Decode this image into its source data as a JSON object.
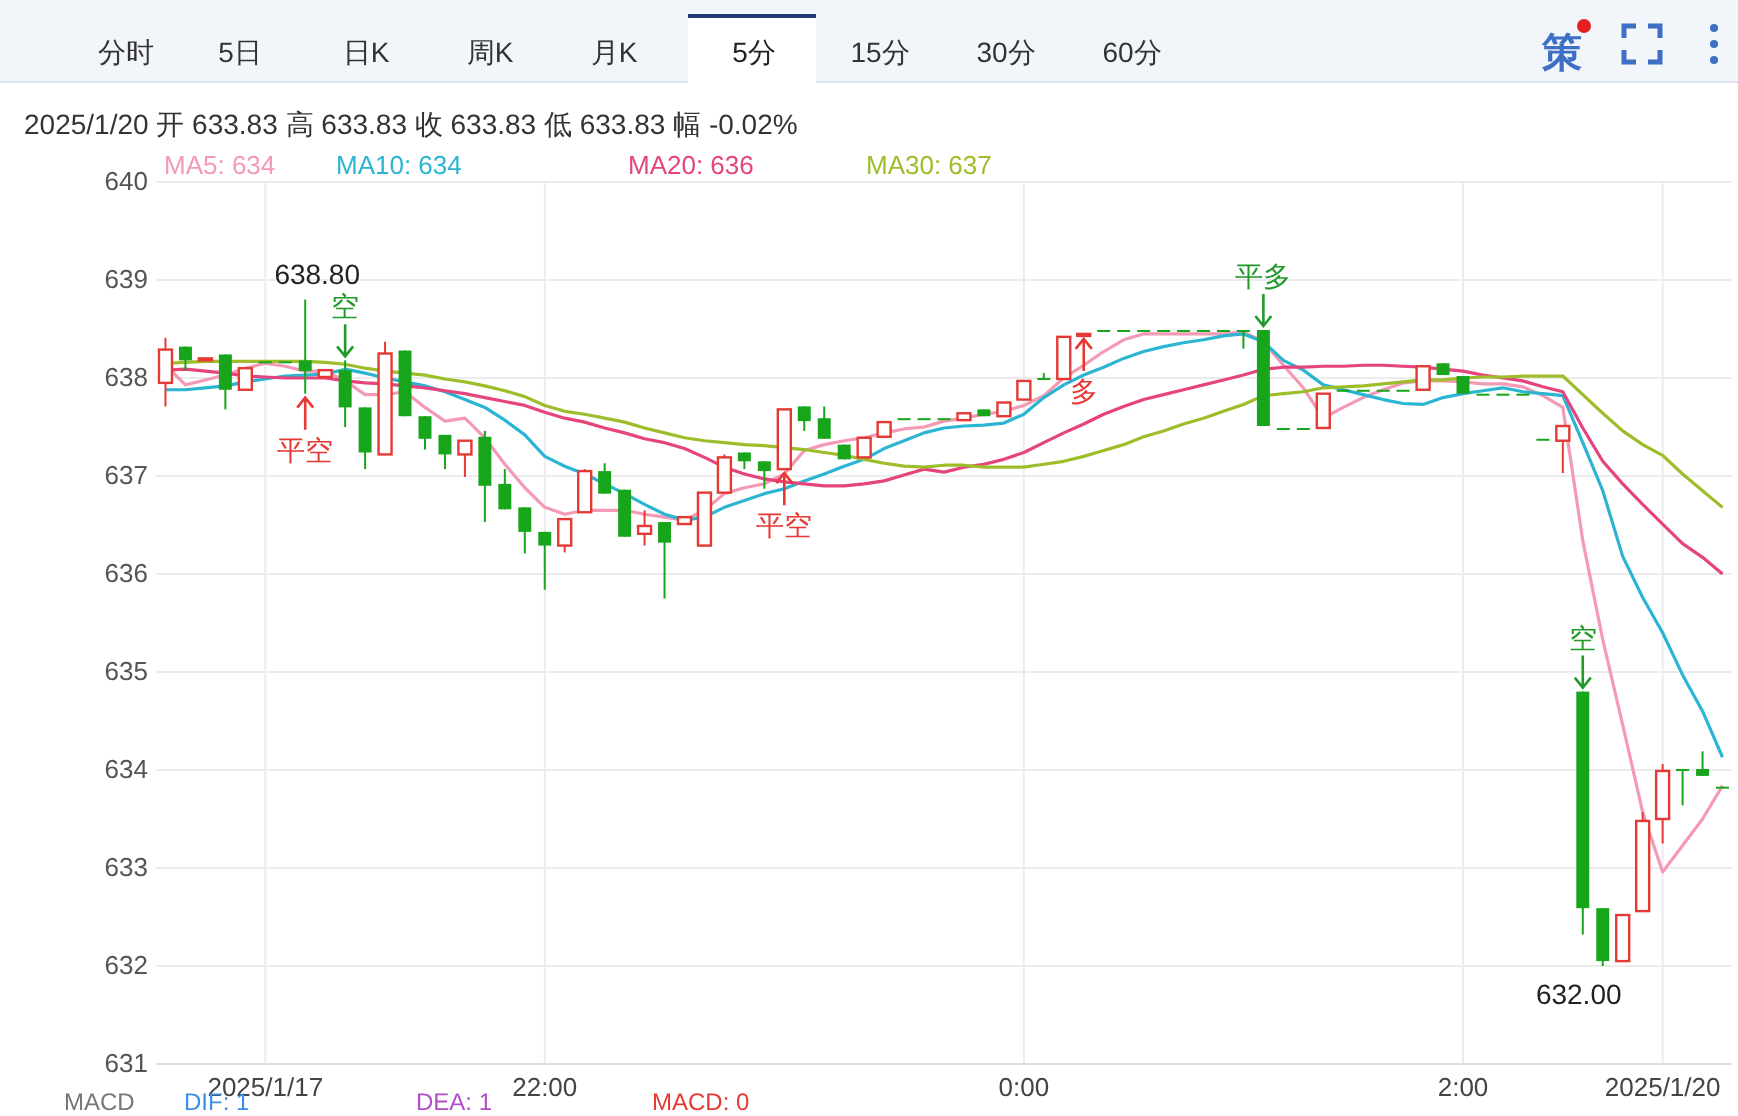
{
  "chart_data": {
    "type": "candlestick",
    "subtitle": "2025/1/20  开 633.83  高 633.83  收 633.83  低 633.83  幅 -0.02%",
    "categories": [
      null,
      null,
      null,
      null,
      null,
      "2025/1/17",
      null,
      null,
      null,
      null,
      null,
      null,
      null,
      null,
      null,
      null,
      null,
      null,
      null,
      "22:00",
      null,
      null,
      null,
      null,
      null,
      null,
      null,
      null,
      null,
      null,
      null,
      null,
      null,
      null,
      null,
      null,
      null,
      null,
      null,
      null,
      null,
      null,
      null,
      "0:00",
      null,
      null,
      null,
      null,
      null,
      null,
      null,
      null,
      null,
      null,
      null,
      null,
      null,
      null,
      null,
      null,
      null,
      null,
      null,
      null,
      null,
      "2:00",
      null,
      null,
      null,
      null,
      null,
      null,
      null,
      null,
      null,
      "2025/1/20",
      null,
      null,
      null
    ],
    "ohlc": [
      [
        637.95,
        638.41,
        637.71,
        638.29
      ],
      [
        638.32,
        638.32,
        638.08,
        638.18
      ],
      [
        638.18,
        638.2,
        638.18,
        638.2
      ],
      [
        638.24,
        638.24,
        637.68,
        637.88
      ],
      [
        637.88,
        638.1,
        637.88,
        638.1
      ],
      [
        638.17,
        638.17,
        638.17,
        638.17
      ],
      [
        638.17,
        638.17,
        638.17,
        638.17
      ],
      [
        638.18,
        638.8,
        637.84,
        638.07
      ],
      [
        638.01,
        638.08,
        638.01,
        638.08
      ],
      [
        638.08,
        638.18,
        637.5,
        637.7
      ],
      [
        637.7,
        637.7,
        637.07,
        637.24
      ],
      [
        637.22,
        638.37,
        637.22,
        638.25
      ],
      [
        638.28,
        638.28,
        637.61,
        637.61
      ],
      [
        637.61,
        637.61,
        637.27,
        637.38
      ],
      [
        637.42,
        637.42,
        637.07,
        637.22
      ],
      [
        637.22,
        637.36,
        636.99,
        637.36
      ],
      [
        637.4,
        637.46,
        636.53,
        636.9
      ],
      [
        636.92,
        637.07,
        636.66,
        636.66
      ],
      [
        636.68,
        636.68,
        636.21,
        636.43
      ],
      [
        636.43,
        636.43,
        635.84,
        636.29
      ],
      [
        636.29,
        636.56,
        636.22,
        636.56
      ],
      [
        636.63,
        637.07,
        636.63,
        637.05
      ],
      [
        637.05,
        637.13,
        636.82,
        636.82
      ],
      [
        636.86,
        636.86,
        636.38,
        636.38
      ],
      [
        636.41,
        636.65,
        636.29,
        636.49
      ],
      [
        636.53,
        636.53,
        635.75,
        636.32
      ],
      [
        636.51,
        636.58,
        636.51,
        636.58
      ],
      [
        636.29,
        636.83,
        636.29,
        636.83
      ],
      [
        636.83,
        637.22,
        636.83,
        637.19
      ],
      [
        637.24,
        637.24,
        637.07,
        637.15
      ],
      [
        637.15,
        637.15,
        636.87,
        637.05
      ],
      [
        637.07,
        637.68,
        637.07,
        637.68
      ],
      [
        637.71,
        637.71,
        637.46,
        637.56
      ],
      [
        637.59,
        637.71,
        637.38,
        637.38
      ],
      [
        637.32,
        637.32,
        637.17,
        637.17
      ],
      [
        637.19,
        637.39,
        637.19,
        637.39
      ],
      [
        637.4,
        637.55,
        637.4,
        637.55
      ],
      [
        637.59,
        637.59,
        637.59,
        637.59
      ],
      [
        637.59,
        637.59,
        637.59,
        637.59
      ],
      [
        637.59,
        637.59,
        637.59,
        637.59
      ],
      [
        637.57,
        637.64,
        637.57,
        637.64
      ],
      [
        637.68,
        637.68,
        637.61,
        637.61
      ],
      [
        637.61,
        637.75,
        637.61,
        637.75
      ],
      [
        637.78,
        637.97,
        637.78,
        637.97
      ],
      [
        638.0,
        638.05,
        637.99,
        637.99
      ],
      [
        637.99,
        638.42,
        637.99,
        638.42
      ],
      [
        638.44,
        638.45,
        638.44,
        638.45
      ],
      [
        638.49,
        638.49,
        638.49,
        638.49
      ],
      [
        638.49,
        638.49,
        638.49,
        638.49
      ],
      [
        638.49,
        638.49,
        638.49,
        638.49
      ],
      [
        638.49,
        638.49,
        638.49,
        638.49
      ],
      [
        638.49,
        638.49,
        638.49,
        638.49
      ],
      [
        638.49,
        638.49,
        638.49,
        638.49
      ],
      [
        638.49,
        638.49,
        638.49,
        638.49
      ],
      [
        638.49,
        638.49,
        638.3,
        638.47
      ],
      [
        638.49,
        638.49,
        637.51,
        637.51
      ],
      [
        637.49,
        637.49,
        637.49,
        637.49
      ],
      [
        637.49,
        637.49,
        637.49,
        637.49
      ],
      [
        637.49,
        637.84,
        637.49,
        637.84
      ],
      [
        637.88,
        637.88,
        637.88,
        637.88
      ],
      [
        637.88,
        637.88,
        637.88,
        637.88
      ],
      [
        637.88,
        637.88,
        637.88,
        637.88
      ],
      [
        637.88,
        637.88,
        637.88,
        637.88
      ],
      [
        637.88,
        638.12,
        637.88,
        638.12
      ],
      [
        638.15,
        638.15,
        638.03,
        638.03
      ],
      [
        638.02,
        638.02,
        637.84,
        637.84
      ],
      [
        637.84,
        637.84,
        637.84,
        637.84
      ],
      [
        637.84,
        637.84,
        637.84,
        637.84
      ],
      [
        637.84,
        637.84,
        637.84,
        637.84
      ],
      [
        637.38,
        637.38,
        637.38,
        637.38
      ],
      [
        637.36,
        637.51,
        637.03,
        637.51
      ],
      [
        634.8,
        634.8,
        632.32,
        632.59
      ],
      [
        632.59,
        632.59,
        632.0,
        632.05
      ],
      [
        632.05,
        632.52,
        632.05,
        632.52
      ],
      [
        632.56,
        633.57,
        632.56,
        633.48
      ],
      [
        633.5,
        634.06,
        633.25,
        633.99
      ],
      [
        634.01,
        634.01,
        633.64,
        634.0
      ],
      [
        634.01,
        634.19,
        633.94,
        633.94
      ],
      [
        633.83,
        633.83,
        633.83,
        633.83
      ]
    ],
    "series": [
      {
        "name": "MA5: 634",
        "type": "line",
        "color": "#f49ab5",
        "values": [
          638.13,
          637.93,
          637.98,
          638.03,
          638.1,
          638.15,
          638.12,
          638.07,
          638.07,
          637.97,
          637.83,
          637.83,
          637.86,
          637.7,
          637.56,
          637.59,
          637.39,
          637.12,
          636.88,
          636.68,
          636.61,
          636.65,
          636.65,
          636.65,
          636.61,
          636.58,
          636.55,
          636.65,
          636.82,
          636.88,
          636.92,
          637.02,
          637.26,
          637.32,
          637.36,
          637.39,
          637.44,
          637.48,
          637.5,
          637.56,
          637.59,
          637.63,
          637.66,
          637.72,
          637.82,
          638.0,
          638.13,
          638.27,
          638.39,
          638.45,
          638.45,
          638.45,
          638.45,
          638.45,
          638.47,
          638.37,
          638.13,
          637.9,
          637.59,
          637.7,
          637.8,
          637.88,
          637.95,
          637.97,
          637.97,
          637.96,
          637.94,
          637.94,
          637.91,
          637.82,
          637.7,
          636.34,
          635.33,
          634.46,
          633.57,
          632.96,
          633.23,
          633.5,
          633.84
        ]
      },
      {
        "name": "MA10: 634",
        "type": "line",
        "color": "#2bb5d3",
        "values": [
          637.88,
          637.88,
          637.9,
          637.92,
          637.96,
          637.99,
          638.02,
          638.03,
          638.04,
          638.09,
          638.05,
          638.0,
          637.96,
          637.92,
          637.86,
          637.78,
          637.7,
          637.57,
          637.42,
          637.2,
          637.1,
          637.02,
          636.92,
          636.82,
          636.71,
          636.61,
          636.55,
          636.58,
          636.68,
          636.75,
          636.82,
          636.87,
          636.95,
          637.02,
          637.1,
          637.17,
          637.28,
          637.36,
          637.44,
          637.49,
          637.51,
          637.52,
          637.54,
          637.63,
          637.8,
          637.93,
          638.03,
          638.11,
          638.2,
          638.27,
          638.32,
          638.36,
          638.39,
          638.43,
          638.45,
          638.37,
          638.18,
          638.08,
          637.93,
          637.88,
          637.83,
          637.78,
          637.74,
          637.73,
          637.8,
          637.84,
          637.87,
          637.9,
          637.86,
          637.84,
          637.82,
          637.34,
          636.85,
          636.18,
          635.76,
          635.4,
          634.97,
          634.6,
          634.13
        ]
      },
      {
        "name": "MA20: 636",
        "type": "line",
        "color": "#e6447c",
        "values": [
          638.08,
          638.09,
          638.07,
          638.05,
          638.02,
          638.01,
          638.0,
          638.0,
          638.0,
          637.97,
          637.95,
          637.94,
          637.92,
          637.9,
          637.87,
          637.84,
          637.8,
          637.76,
          637.72,
          637.65,
          637.59,
          637.55,
          637.49,
          637.44,
          637.38,
          637.34,
          637.28,
          637.19,
          637.09,
          637.02,
          636.97,
          636.94,
          636.92,
          636.9,
          636.9,
          636.92,
          636.95,
          637.01,
          637.07,
          637.04,
          637.09,
          637.12,
          637.17,
          637.24,
          637.34,
          637.44,
          637.53,
          637.63,
          637.71,
          637.78,
          637.83,
          637.88,
          637.93,
          637.98,
          638.03,
          638.09,
          638.11,
          638.11,
          638.12,
          638.12,
          638.13,
          638.13,
          638.12,
          638.11,
          638.09,
          638.07,
          638.03,
          638.0,
          637.97,
          637.91,
          637.86,
          637.49,
          637.15,
          636.92,
          636.71,
          636.51,
          636.31,
          636.17,
          636.0
        ]
      },
      {
        "name": "MA30: 637",
        "type": "line",
        "color": "#9dbd2b",
        "values": [
          638.15,
          638.16,
          638.17,
          638.17,
          638.17,
          638.17,
          638.17,
          638.17,
          638.16,
          638.14,
          638.1,
          638.07,
          638.05,
          638.03,
          637.99,
          637.96,
          637.92,
          637.87,
          637.81,
          637.72,
          637.66,
          637.63,
          637.59,
          637.55,
          637.49,
          637.44,
          637.39,
          637.36,
          637.34,
          637.32,
          637.31,
          637.29,
          637.27,
          637.24,
          637.21,
          637.17,
          637.13,
          637.1,
          637.09,
          637.11,
          637.11,
          637.09,
          637.09,
          637.09,
          637.12,
          637.15,
          637.2,
          637.26,
          637.32,
          637.4,
          637.46,
          637.53,
          637.59,
          637.66,
          637.73,
          637.82,
          637.84,
          637.86,
          637.9,
          637.91,
          637.92,
          637.94,
          637.96,
          637.98,
          637.98,
          638.0,
          638.01,
          638.01,
          638.02,
          638.02,
          638.02,
          637.83,
          637.64,
          637.46,
          637.32,
          637.21,
          637.02,
          636.85,
          636.68
        ]
      }
    ],
    "ylim": [
      631,
      640
    ],
    "yticks": [
      631,
      632,
      633,
      634,
      635,
      636,
      637,
      638,
      639,
      640
    ],
    "grid": true,
    "legend": "top left",
    "annotations": [
      "分时",
      "5日",
      "日K",
      "周K",
      "月K",
      "5分",
      "15分",
      "30分",
      "60分",
      "策",
      "MACD",
      "DIF: 1",
      "DEA: 1",
      "MACD: 0",
      "638.80",
      "空",
      "平空",
      "平空",
      "多",
      "平多",
      "空",
      "632.00"
    ]
  }
}
